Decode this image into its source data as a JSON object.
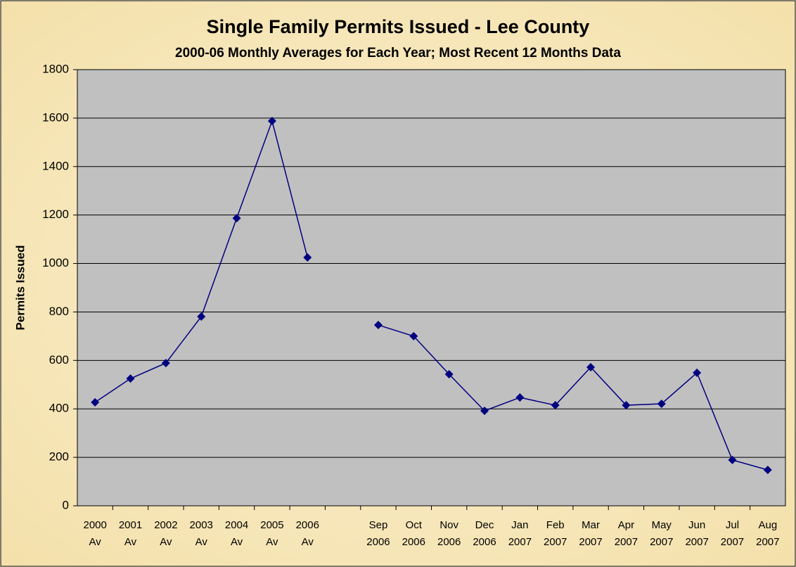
{
  "chart_data": {
    "type": "line",
    "title": "Single Family Permits Issued - Lee County",
    "subtitle": "2000-06 Monthly Averages for Each Year; Most Recent 12 Months Data",
    "y_label": "Permits Issued",
    "categories": [
      "2000 Av",
      "2001 Av",
      "2002 Av",
      "2003 Av",
      "2004 Av",
      "2005 Av",
      "2006 Av",
      null,
      "Sep 2006",
      "Oct 2006",
      "Nov 2006",
      "Dec 2006",
      "Jan 2007",
      "Feb 2007",
      "Mar 2007",
      "Apr 2007",
      "May 2007",
      "Jun 2007",
      "Jul 2007",
      "Aug 2007"
    ],
    "values": [
      427,
      525,
      589,
      781,
      1187,
      1588,
      1025,
      null,
      746,
      700,
      543,
      392,
      447,
      415,
      572,
      415,
      421,
      549,
      189,
      148
    ],
    "color": "#000080",
    "ylim": [
      0,
      1800
    ],
    "yticks": [
      0,
      200,
      400,
      600,
      800,
      1000,
      1200,
      1400,
      1600,
      1800
    ],
    "grid": true
  }
}
